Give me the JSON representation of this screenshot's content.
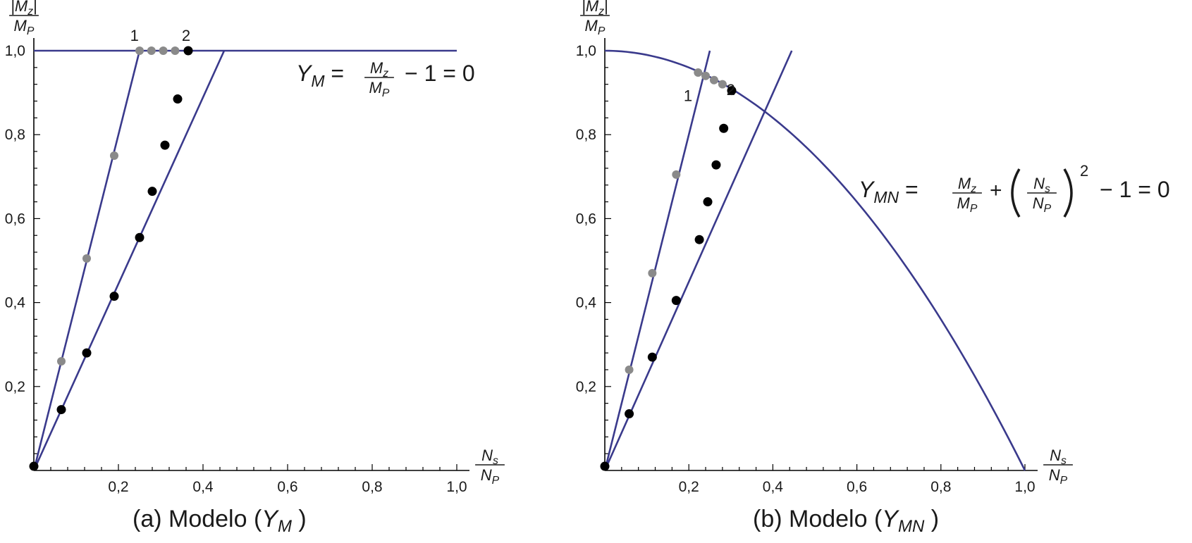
{
  "colors": {
    "curve": "#3a3a8c",
    "point_gray": "#8a8a8a",
    "point_black": "#000000",
    "axis": "#000000"
  },
  "chart_data": [
    {
      "type": "scatter",
      "caption_prefix": "(a) Modelo (",
      "caption_var": "Y",
      "caption_sub": "M",
      "caption_suffix": ")",
      "xlabel_num": "N",
      "xlabel_num_sub": "s",
      "xlabel_den": "N",
      "xlabel_den_sub": "P",
      "ylabel_num": "|M",
      "ylabel_num_sub": "z",
      "ylabel_num_end": "|",
      "ylabel_den": "M",
      "ylabel_den_sub": "P",
      "xlim": [
        0,
        1.0
      ],
      "ylim": [
        0,
        1.0
      ],
      "x_ticks": [
        0.2,
        0.4,
        0.6,
        0.8,
        1.0
      ],
      "x_tick_labels": [
        "0,2",
        "0,4",
        "0,6",
        "0,8",
        "1,0"
      ],
      "y_ticks": [
        0.2,
        0.4,
        0.6,
        0.8,
        1.0
      ],
      "y_tick_labels": [
        "0,2",
        "0,4",
        "0,6",
        "0,8",
        "1,0"
      ],
      "equation": {
        "lhs": "Y",
        "lhs_sub": "M",
        "frac_num": "M",
        "frac_num_sub": "z",
        "frac_den": "M",
        "frac_den_sub": "P",
        "tail": "− 1 = 0"
      },
      "annotations": [
        {
          "text": "1",
          "x": 0.238,
          "y": 1.0
        },
        {
          "text": "2",
          "x": 0.36,
          "y": 1.0
        }
      ],
      "lines": [
        {
          "name": "yield",
          "points": [
            [
              0,
              1.0
            ],
            [
              1.0,
              1.0
            ]
          ]
        },
        {
          "name": "path-1",
          "points": [
            [
              0,
              0
            ],
            [
              0.25,
              1.0
            ]
          ]
        },
        {
          "name": "path-2",
          "points": [
            [
              0,
              0
            ],
            [
              0.45,
              1.0
            ]
          ]
        }
      ],
      "series": [
        {
          "color": "gray",
          "points": [
            [
              0.065,
              0.26
            ],
            [
              0.125,
              0.505
            ],
            [
              0.19,
              0.75
            ],
            [
              0.25,
              1.0
            ],
            [
              0.278,
              1.0
            ],
            [
              0.306,
              1.0
            ],
            [
              0.334,
              1.0
            ]
          ]
        },
        {
          "color": "black",
          "points": [
            [
              0.0,
              0.01
            ],
            [
              0.065,
              0.145
            ],
            [
              0.125,
              0.28
            ],
            [
              0.19,
              0.415
            ],
            [
              0.25,
              0.555
            ],
            [
              0.28,
              0.665
            ],
            [
              0.31,
              0.775
            ],
            [
              0.34,
              0.885
            ],
            [
              0.365,
              1.0
            ]
          ]
        }
      ]
    },
    {
      "type": "scatter",
      "caption_prefix": "(b) Modelo (",
      "caption_var": "Y",
      "caption_sub": "MN",
      "caption_suffix": ")",
      "xlabel_num": "N",
      "xlabel_num_sub": "s",
      "xlabel_den": "N",
      "xlabel_den_sub": "P",
      "ylabel_num": "|M",
      "ylabel_num_sub": "z",
      "ylabel_num_end": "|",
      "ylabel_den": "M",
      "ylabel_den_sub": "P",
      "xlim": [
        0,
        1.0
      ],
      "ylim": [
        0,
        1.0
      ],
      "x_ticks": [
        0.2,
        0.4,
        0.6,
        0.8,
        1.0
      ],
      "x_tick_labels": [
        "0,2",
        "0,4",
        "0,6",
        "0,8",
        "1,0"
      ],
      "y_ticks": [
        0.2,
        0.4,
        0.6,
        0.8,
        1.0
      ],
      "y_tick_labels": [
        "0,2",
        "0,4",
        "0,6",
        "0,8",
        "1,0"
      ],
      "equation": {
        "lhs": "Y",
        "lhs_sub": "MN",
        "frac_num": "M",
        "frac_num_sub": "z",
        "frac_den": "M",
        "frac_den_sub": "P",
        "frac2_num": "N",
        "frac2_num_sub": "s",
        "frac2_den": "N",
        "frac2_den_sub": "P",
        "power": "2",
        "tail": "− 1 = 0"
      },
      "annotations": [
        {
          "text": "1",
          "x": 0.198,
          "y": 0.93
        },
        {
          "text": "2",
          "x": 0.3,
          "y": 0.945
        }
      ],
      "lines": [
        {
          "name": "path-1",
          "points": [
            [
              0,
              0
            ],
            [
              0.25,
              1.0
            ]
          ]
        },
        {
          "name": "path-2",
          "points": [
            [
              0,
              0
            ],
            [
              0.445,
              1.0
            ]
          ]
        }
      ],
      "curve": {
        "name": "yield",
        "formula": "y = 1 - x^2",
        "x_range": [
          0,
          1.0
        ]
      },
      "series": [
        {
          "color": "gray",
          "points": [
            [
              0.058,
              0.24
            ],
            [
              0.113,
              0.47
            ],
            [
              0.17,
              0.705
            ],
            [
              0.222,
              0.948
            ],
            [
              0.24,
              0.94
            ],
            [
              0.26,
              0.93
            ],
            [
              0.28,
              0.92
            ]
          ]
        },
        {
          "color": "black",
          "points": [
            [
              0.0,
              0.01
            ],
            [
              0.058,
              0.135
            ],
            [
              0.113,
              0.27
            ],
            [
              0.17,
              0.405
            ],
            [
              0.225,
              0.55
            ],
            [
              0.245,
              0.64
            ],
            [
              0.265,
              0.728
            ],
            [
              0.283,
              0.815
            ],
            [
              0.302,
              0.905
            ]
          ]
        }
      ]
    }
  ]
}
